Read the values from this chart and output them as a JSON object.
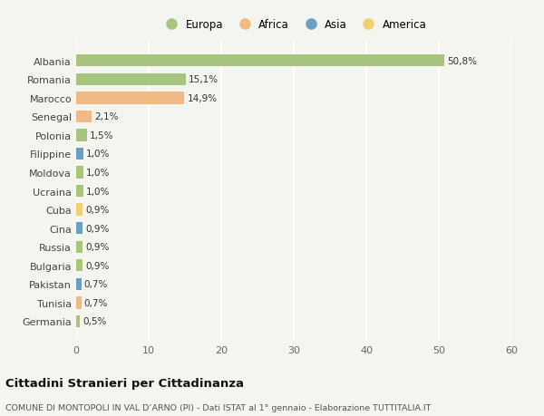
{
  "categories": [
    "Albania",
    "Romania",
    "Marocco",
    "Senegal",
    "Polonia",
    "Filippine",
    "Moldova",
    "Ucraina",
    "Cuba",
    "Cina",
    "Russia",
    "Bulgaria",
    "Pakistan",
    "Tunisia",
    "Germania"
  ],
  "values": [
    50.8,
    15.1,
    14.9,
    2.1,
    1.5,
    1.0,
    1.0,
    1.0,
    0.9,
    0.9,
    0.9,
    0.9,
    0.7,
    0.7,
    0.5
  ],
  "labels": [
    "50,8%",
    "15,1%",
    "14,9%",
    "2,1%",
    "1,5%",
    "1,0%",
    "1,0%",
    "1,0%",
    "0,9%",
    "0,9%",
    "0,9%",
    "0,9%",
    "0,7%",
    "0,7%",
    "0,5%"
  ],
  "bar_colors": [
    "#a8c580",
    "#a8c580",
    "#f0b985",
    "#f0b985",
    "#a8c580",
    "#6b9ec4",
    "#a8c580",
    "#a8c580",
    "#f0d070",
    "#6b9ec4",
    "#a8c580",
    "#a8c580",
    "#6b9ec4",
    "#f0b985",
    "#a8c580"
  ],
  "legend_labels": [
    "Europa",
    "Africa",
    "Asia",
    "America"
  ],
  "legend_colors": [
    "#a8c580",
    "#f0b985",
    "#6b9ec4",
    "#f0d070"
  ],
  "title": "Cittadini Stranieri per Cittadinanza",
  "subtitle": "COMUNE DI MONTOPOLI IN VAL D’ARNO (PI) - Dati ISTAT al 1° gennaio - Elaborazione TUTTITALIA.IT",
  "xlim": [
    0,
    60
  ],
  "xticks": [
    0,
    10,
    20,
    30,
    40,
    50,
    60
  ],
  "background_color": "#f5f5f0",
  "grid_color": "#ffffff"
}
